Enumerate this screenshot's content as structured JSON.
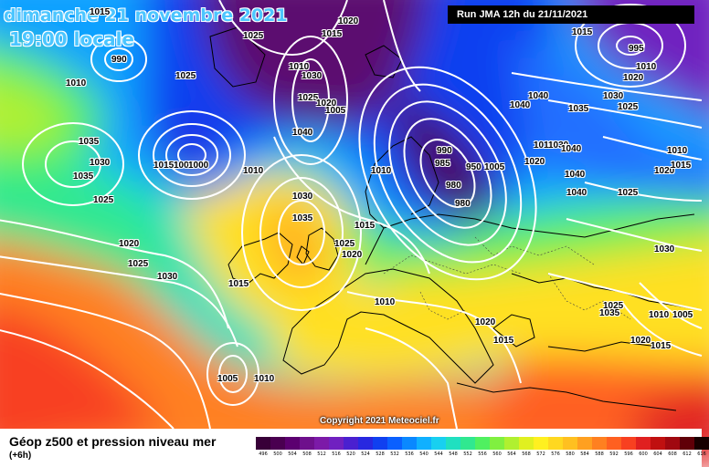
{
  "header": {
    "date_line": "dimanche 21 novembre 2021",
    "time_line": "19:00 locale",
    "run_info": "Run JMA 12h du 21/11/2021"
  },
  "copyright": "Copyright 2021 Meteociel.fr",
  "legend": {
    "title": "Géop z500 et pression niveau mer",
    "subtitle": "(+6h)",
    "scale": [
      {
        "value": "496",
        "color": "#380038"
      },
      {
        "value": "500",
        "color": "#4a0050"
      },
      {
        "value": "504",
        "color": "#5c0070"
      },
      {
        "value": "508",
        "color": "#6e108c"
      },
      {
        "value": "512",
        "color": "#7c1aa8"
      },
      {
        "value": "516",
        "color": "#7020c0"
      },
      {
        "value": "520",
        "color": "#4a20d0"
      },
      {
        "value": "524",
        "color": "#2828e0"
      },
      {
        "value": "528",
        "color": "#1040f0"
      },
      {
        "value": "532",
        "color": "#0a60ff"
      },
      {
        "value": "536",
        "color": "#0a88ff"
      },
      {
        "value": "540",
        "color": "#10b0ff"
      },
      {
        "value": "544",
        "color": "#18d0f0"
      },
      {
        "value": "548",
        "color": "#20e0c0"
      },
      {
        "value": "552",
        "color": "#30e890"
      },
      {
        "value": "556",
        "color": "#50f060"
      },
      {
        "value": "560",
        "color": "#80f040"
      },
      {
        "value": "564",
        "color": "#b0f030"
      },
      {
        "value": "568",
        "color": "#e0f020"
      },
      {
        "value": "572",
        "color": "#fff020"
      },
      {
        "value": "576",
        "color": "#ffd820"
      },
      {
        "value": "580",
        "color": "#ffc020"
      },
      {
        "value": "584",
        "color": "#ffa020"
      },
      {
        "value": "588",
        "color": "#ff8020"
      },
      {
        "value": "592",
        "color": "#ff6020"
      },
      {
        "value": "596",
        "color": "#f84020"
      },
      {
        "value": "600",
        "color": "#e02020"
      },
      {
        "value": "604",
        "color": "#c01010"
      },
      {
        "value": "608",
        "color": "#a00810"
      },
      {
        "value": "612",
        "color": "#600008"
      },
      {
        "value": "616",
        "color": "#180000"
      }
    ]
  },
  "isobar_labels": [
    {
      "text": "1015"
    },
    {
      "text": "990"
    },
    {
      "text": "1010"
    },
    {
      "text": "1025"
    },
    {
      "text": "1020"
    },
    {
      "text": "1015"
    },
    {
      "text": "1025"
    },
    {
      "text": "1010"
    },
    {
      "text": "1030"
    },
    {
      "text": "1025"
    },
    {
      "text": "1020"
    },
    {
      "text": "1005"
    },
    {
      "text": "1040"
    },
    {
      "text": "1035"
    },
    {
      "text": "1030"
    },
    {
      "text": "1035"
    },
    {
      "text": "1015"
    },
    {
      "text": "1005"
    },
    {
      "text": "1000"
    },
    {
      "text": "1010"
    },
    {
      "text": "1025"
    },
    {
      "text": "1020"
    },
    {
      "text": "1025"
    },
    {
      "text": "1030"
    },
    {
      "text": "1030"
    },
    {
      "text": "1035"
    },
    {
      "text": "1025"
    },
    {
      "text": "1020"
    },
    {
      "text": "1015"
    },
    {
      "text": "1015"
    },
    {
      "text": "1010"
    },
    {
      "text": "990"
    },
    {
      "text": "985"
    },
    {
      "text": "980"
    },
    {
      "text": "980"
    },
    {
      "text": "950"
    },
    {
      "text": "1005"
    },
    {
      "text": "1040"
    },
    {
      "text": "1040"
    },
    {
      "text": "1035"
    },
    {
      "text": "1010"
    },
    {
      "text": "1030"
    },
    {
      "text": "1040"
    },
    {
      "text": "1040"
    },
    {
      "text": "1040"
    },
    {
      "text": "1020"
    },
    {
      "text": "1025"
    },
    {
      "text": "1015"
    },
    {
      "text": "995"
    },
    {
      "text": "1010"
    },
    {
      "text": "1020"
    },
    {
      "text": "1030"
    },
    {
      "text": "1025"
    },
    {
      "text": "1010"
    },
    {
      "text": "1020"
    },
    {
      "text": "1015"
    },
    {
      "text": "1030"
    },
    {
      "text": "1025"
    },
    {
      "text": "1035"
    },
    {
      "text": "1010"
    },
    {
      "text": "1005"
    },
    {
      "text": "1020"
    },
    {
      "text": "1015"
    },
    {
      "text": "1010"
    },
    {
      "text": "1020"
    },
    {
      "text": "1015"
    },
    {
      "text": "1005"
    },
    {
      "text": "1010"
    }
  ]
}
